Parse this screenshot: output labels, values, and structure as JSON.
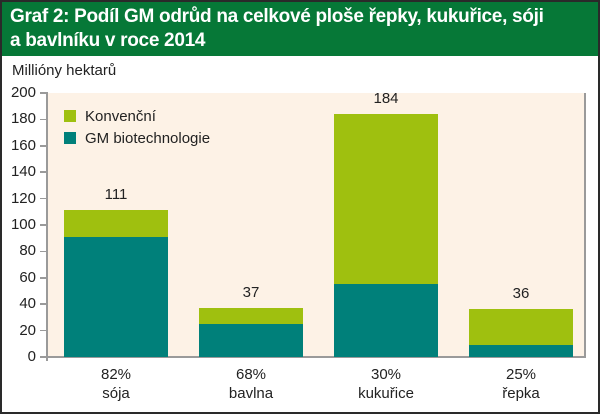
{
  "title": {
    "line1": "Graf 2: Podíl GM odrůd na celkové ploše řepky, kukuřice, sóji",
    "line2": "a bavlníku v roce 2014"
  },
  "colors": {
    "header_bg": "#067837",
    "plot_bg": "#fdf2e6",
    "konvencni": "#9fc00f",
    "gm": "#00807a"
  },
  "legend": [
    {
      "label": "Konvenční",
      "color": "#9fc00f"
    },
    {
      "label": "GM biotechnologie",
      "color": "#00807a"
    }
  ],
  "y_axis": {
    "label": "Millióny hektarů",
    "ticks": [
      "200",
      "180",
      "160",
      "140",
      "120",
      "100",
      "80",
      "60",
      "40",
      "20",
      "0"
    ]
  },
  "categories": [
    {
      "name": "sója",
      "pct": "82%",
      "total": "111"
    },
    {
      "name": "bavlna",
      "pct": "68%",
      "total": "37"
    },
    {
      "name": "kukuřice",
      "pct": "30%",
      "total": "184"
    },
    {
      "name": "řepka",
      "pct": "25%",
      "total": "36"
    }
  ],
  "chart_data": {
    "type": "bar",
    "stacked": true,
    "title": "Graf 2: Podíl GM odrůd na celkové ploše řepky, kukuřice, sóji a bavlníku v roce 2014",
    "xlabel": "",
    "ylabel": "Millióny hektarů",
    "ylim": [
      0,
      200
    ],
    "yticks": [
      0,
      20,
      40,
      60,
      80,
      100,
      120,
      140,
      160,
      180,
      200
    ],
    "categories": [
      "sója",
      "bavlna",
      "kukuřice",
      "řepka"
    ],
    "category_sublabels": [
      "82%",
      "68%",
      "30%",
      "25%"
    ],
    "series": [
      {
        "name": "GM biotechnologie",
        "color": "#00807a",
        "values": [
          91,
          25,
          55,
          9
        ]
      },
      {
        "name": "Konvenční",
        "color": "#9fc00f",
        "values": [
          20,
          12,
          129,
          27
        ]
      }
    ],
    "totals": [
      111,
      37,
      184,
      36
    ],
    "legend_position": "upper left inside",
    "grid": false
  }
}
